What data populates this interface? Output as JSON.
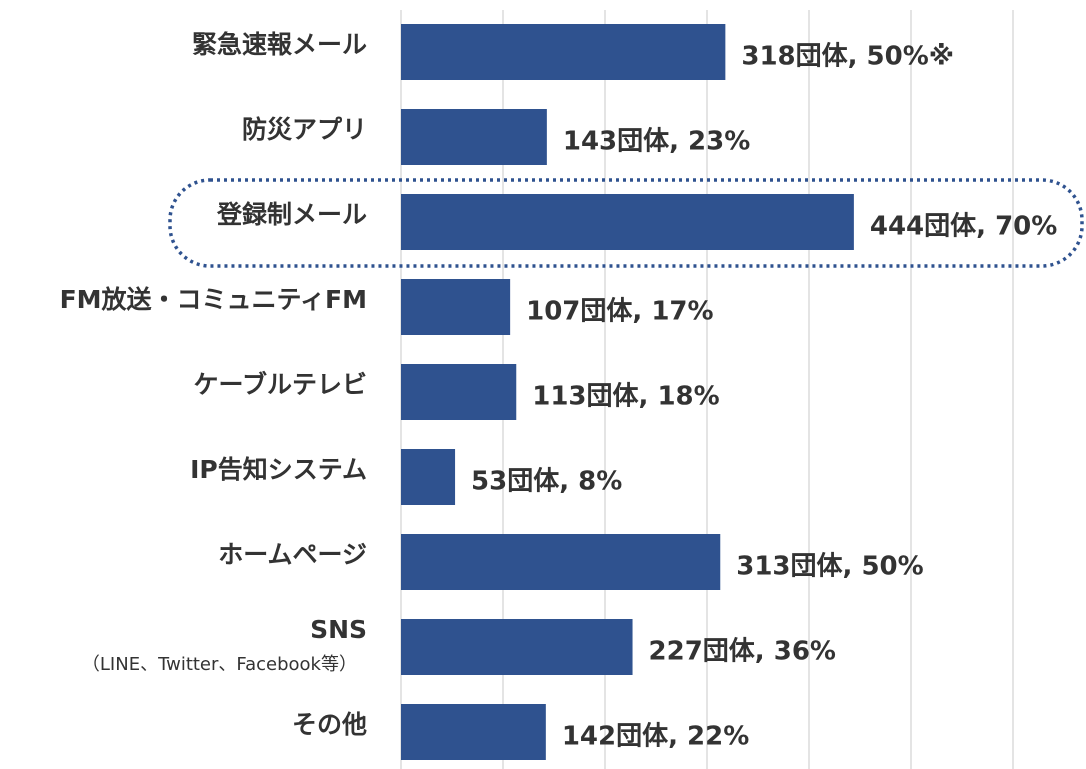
{
  "chart_data": {
    "type": "bar",
    "orientation": "horizontal",
    "categories": [
      "緊急速報メール",
      "防災アプリ",
      "登録制メール",
      "FM放送・コミュニティFM",
      "ケーブルテレビ",
      "IP告知システム",
      "ホームページ",
      "SNS",
      "その他"
    ],
    "category_notes": [
      null,
      null,
      null,
      null,
      null,
      null,
      null,
      "（LINE、Twitter、Facebook等）",
      null
    ],
    "values": [
      318,
      143,
      444,
      107,
      113,
      53,
      313,
      227,
      142
    ],
    "value_labels": [
      "318団体, 50%※",
      "143団体, 23%",
      "444団体, 70%",
      "107団体, 17%",
      "113団体, 18%",
      "53団体, 8%",
      "313団体, 50%",
      "227団体, 36%",
      "142団体, 22%"
    ],
    "color": "#2f528f",
    "xlim": [
      0,
      600
    ],
    "xticks": [
      0,
      100,
      200,
      300,
      400,
      500,
      600
    ],
    "grid": true
  }
}
